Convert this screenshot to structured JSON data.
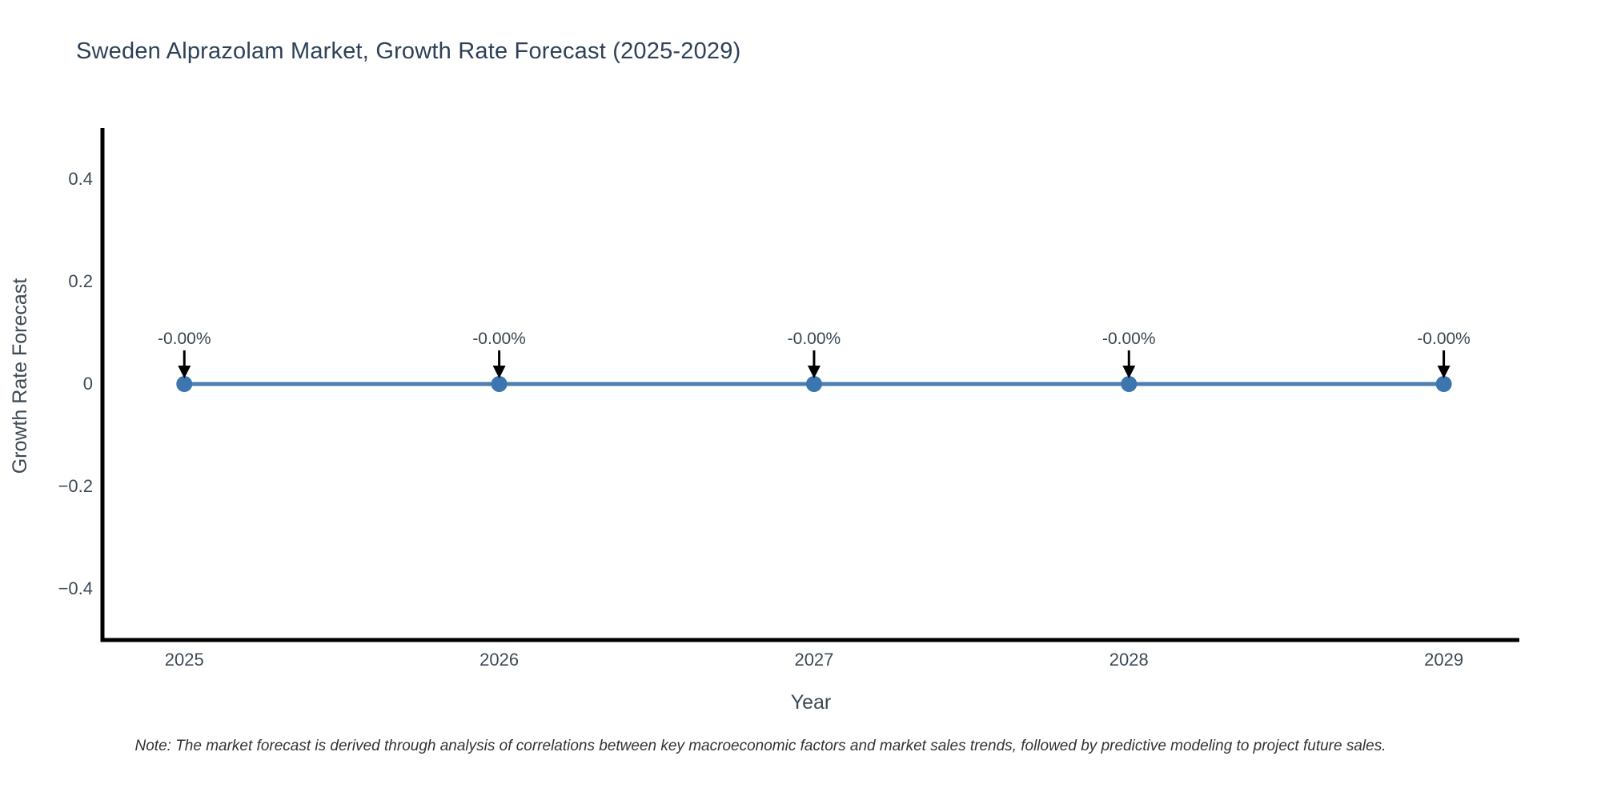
{
  "title": "Sweden Alprazolam Market, Growth Rate Forecast (2025-2029)",
  "note": "Note: The market forecast is derived through analysis of correlations between key macroeconomic factors and market sales trends, followed by predictive modeling to project future sales.",
  "chart_data": {
    "type": "line",
    "title": "Sweden Alprazolam Market, Growth Rate Forecast (2025-2029)",
    "x": [
      2025,
      2026,
      2027,
      2028,
      2029
    ],
    "series": [
      {
        "name": "Growth Rate Forecast",
        "values": [
          0,
          0,
          0,
          0,
          0
        ]
      }
    ],
    "point_labels": [
      "-0.00%",
      "-0.00%",
      "-0.00%",
      "-0.00%",
      "-0.00%"
    ],
    "xlabel": "Year",
    "ylabel": "Growth Rate Forecast",
    "xlim": [
      2024.74,
      2029.24
    ],
    "ylim": [
      -0.5,
      0.5
    ],
    "xticks": [
      2025,
      2026,
      2027,
      2028,
      2029
    ],
    "xtick_labels": [
      "2025",
      "2026",
      "2027",
      "2028",
      "2029"
    ],
    "yticks": [
      0.4,
      0.2,
      0,
      -0.2,
      -0.4
    ],
    "ytick_labels": [
      "0.4",
      "0.2",
      "0",
      "−0.2",
      "−0.4"
    ],
    "grid": false,
    "legend": "none",
    "annotation_arrows": true,
    "colors": {
      "line": "#4d7fae",
      "marker": "#3b76af",
      "axis": "#000000",
      "tick_label": "#3d4a56",
      "axis_title": "#3d4a56",
      "annotation": "#3b4754",
      "arrow": "#000000",
      "title": "#2e4157",
      "note": "#333333"
    }
  }
}
